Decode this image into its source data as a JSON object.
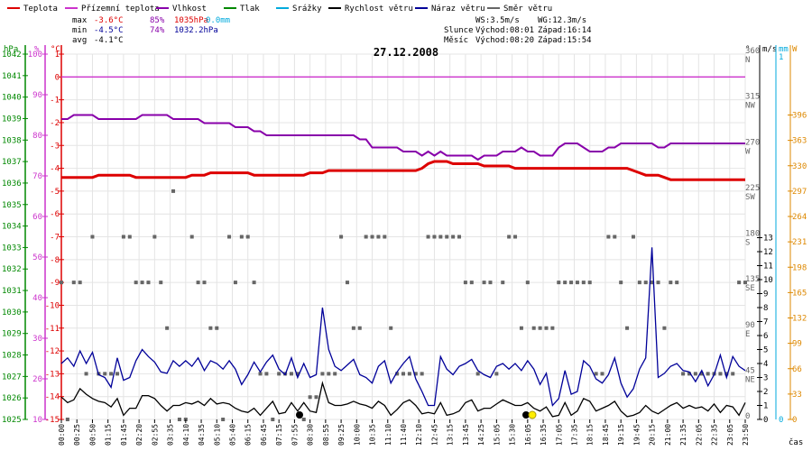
{
  "legend": [
    {
      "label": "Teplota",
      "color": "#dd0000"
    },
    {
      "label": "Přízemní teplota",
      "color": "#cc33cc"
    },
    {
      "label": "Vlhkost",
      "color": "#8800aa"
    },
    {
      "label": "Tlak",
      "color": "#008800"
    },
    {
      "label": "Srážky",
      "color": "#00aadd"
    },
    {
      "label": "Rychlost větru",
      "color": "#000000"
    },
    {
      "label": "Náraz větru",
      "color": "#000099"
    },
    {
      "label": "Směr větru",
      "color": "#666666"
    }
  ],
  "stats": {
    "max_label": "max",
    "max_temp": "-3.6°C",
    "max_hum": "85%",
    "max_press": "1035hPa",
    "rain": "0.0mm",
    "min_label": "min",
    "min_temp": "-4.5°C",
    "min_hum": "74%",
    "min_press": "1032.2hPa",
    "avg_label": "avg",
    "avg_temp": "-4.1°C"
  },
  "info": {
    "ws": "WS:3.5m/s",
    "wg": "WG:12.3m/s",
    "slunce_label": "Slunce",
    "slunce_rise": "Východ:08:01",
    "slunce_set": "Západ:16:14",
    "mesic_label": "Měsíc",
    "mesic_rise": "Východ:08:20",
    "mesic_set": "Západ:15:54"
  },
  "date": "27.12.2008",
  "axis_units": {
    "hpa": "hPa",
    "pct": "%",
    "degc": "°C",
    "deg": "°",
    "ms": "m/s",
    "mm": "mm",
    "w": "W",
    "cas": "čas"
  },
  "chart_data": {
    "type": "line",
    "title": "27.12.2008",
    "x_ticks": [
      "00:00",
      "00:25",
      "00:50",
      "01:15",
      "01:45",
      "02:20",
      "02:55",
      "03:35",
      "04:10",
      "04:35",
      "05:10",
      "05:40",
      "06:15",
      "06:45",
      "07:15",
      "07:55",
      "08:30",
      "08:55",
      "09:25",
      "10:00",
      "10:35",
      "11:10",
      "11:40",
      "12:10",
      "12:45",
      "13:15",
      "13:45",
      "14:25",
      "15:05",
      "15:30",
      "16:05",
      "16:35",
      "17:05",
      "17:35",
      "18:15",
      "18:45",
      "19:15",
      "19:45",
      "20:15",
      "21:00",
      "21:35",
      "22:05",
      "22:35",
      "23:05",
      "23:50"
    ],
    "y_hpa": {
      "range": [
        1025,
        1042
      ],
      "ticks": [
        1042,
        1041,
        1040,
        1039,
        1038,
        1037,
        1036,
        1035,
        1034,
        1033,
        1032,
        1031,
        1030,
        1029,
        1028,
        1027,
        1026,
        1025
      ]
    },
    "y_pct": {
      "range": [
        10,
        100
      ],
      "ticks": [
        100,
        90,
        80,
        70,
        60,
        50,
        40,
        30,
        20,
        10
      ]
    },
    "y_temp": {
      "range": [
        -15,
        1
      ],
      "ticks": [
        "1",
        "0",
        "-1",
        "-2",
        "-3",
        "-4",
        "-5",
        "-6",
        "-7",
        "-8",
        "-9",
        "-10",
        "-11",
        "-12",
        "-13",
        "-14",
        "-15"
      ]
    },
    "y_dir": {
      "range": [
        0,
        360
      ],
      "ticks": [
        "360",
        "315",
        "270",
        "225",
        "180",
        "135",
        "90",
        "45",
        "0"
      ],
      "cardinals": [
        "N",
        "NW",
        "W",
        "SW",
        "S",
        "SE",
        "E",
        "NE",
        ""
      ]
    },
    "y_ms": {
      "range": [
        0,
        13
      ],
      "ticks": [
        "13",
        "12",
        "11",
        "10",
        "9",
        "8",
        "7",
        "6",
        "5",
        "4",
        "3",
        "2",
        "1",
        "0"
      ]
    },
    "y_mm": {
      "range": [
        0,
        1
      ],
      "ticks": [
        "1",
        "0"
      ]
    },
    "y_w": {
      "range": [
        0,
        396
      ],
      "ticks": [
        "396",
        "363",
        "330",
        "297",
        "264",
        "231",
        "198",
        "165",
        "132",
        "99",
        "66",
        "33",
        "0"
      ]
    },
    "series": [
      {
        "name": "Teplota",
        "color": "#dd0000",
        "axis": "temp",
        "values": [
          -4.4,
          -4.4,
          -4.4,
          -4.4,
          -4.4,
          -4.4,
          -4.3,
          -4.3,
          -4.3,
          -4.3,
          -4.3,
          -4.3,
          -4.4,
          -4.4,
          -4.4,
          -4.4,
          -4.4,
          -4.4,
          -4.4,
          -4.4,
          -4.4,
          -4.3,
          -4.3,
          -4.3,
          -4.2,
          -4.2,
          -4.2,
          -4.2,
          -4.2,
          -4.2,
          -4.2,
          -4.3,
          -4.3,
          -4.3,
          -4.3,
          -4.3,
          -4.3,
          -4.3,
          -4.3,
          -4.3,
          -4.2,
          -4.2,
          -4.2,
          -4.1,
          -4.1,
          -4.1,
          -4.1,
          -4.1,
          -4.1,
          -4.1,
          -4.1,
          -4.1,
          -4.1,
          -4.1,
          -4.1,
          -4.1,
          -4.1,
          -4.1,
          -4.0,
          -3.8,
          -3.7,
          -3.7,
          -3.7,
          -3.8,
          -3.8,
          -3.8,
          -3.8,
          -3.8,
          -3.9,
          -3.9,
          -3.9,
          -3.9,
          -3.9,
          -4.0,
          -4.0,
          -4.0,
          -4.0,
          -4.0,
          -4.0,
          -4.0,
          -4.0,
          -4.0,
          -4.0,
          -4.0,
          -4.0,
          -4.0,
          -4.0,
          -4.0,
          -4.0,
          -4.0,
          -4.0,
          -4.0,
          -4.1,
          -4.2,
          -4.3,
          -4.3,
          -4.3,
          -4.4,
          -4.5,
          -4.5,
          -4.5,
          -4.5,
          -4.5,
          -4.5,
          -4.5,
          -4.5,
          -4.5,
          -4.5,
          -4.5,
          -4.5,
          -4.5
        ]
      },
      {
        "name": "Přízemní teplota",
        "color": "#cc33cc",
        "axis": "temp",
        "values": [
          0,
          0,
          0,
          0,
          0,
          0,
          0,
          0,
          0,
          0,
          0,
          0,
          0,
          0,
          0,
          0,
          0,
          0,
          0,
          0,
          0,
          0,
          0,
          0,
          0,
          0,
          0,
          0,
          0,
          0,
          0,
          0,
          0,
          0,
          0,
          0,
          0,
          0,
          0,
          0,
          0,
          0,
          0,
          0,
          0,
          0,
          0,
          0,
          0,
          0,
          0,
          0,
          0,
          0,
          0,
          0,
          0,
          0,
          0,
          0,
          0,
          0,
          0,
          0,
          0,
          0,
          0,
          0,
          0,
          0,
          0,
          0,
          0,
          0,
          0,
          0,
          0,
          0,
          0,
          0,
          0,
          0,
          0,
          0,
          0,
          0,
          0,
          0,
          0,
          0,
          0,
          0,
          0,
          0,
          0,
          0,
          0,
          0,
          0,
          0,
          0,
          0,
          0,
          0,
          0,
          0,
          0,
          0,
          0,
          0
        ]
      },
      {
        "name": "Vlhkost",
        "color": "#8800aa",
        "axis": "pct",
        "values": [
          84,
          84,
          85,
          85,
          85,
          85,
          84,
          84,
          84,
          84,
          84,
          84,
          84,
          85,
          85,
          85,
          85,
          85,
          84,
          84,
          84,
          84,
          84,
          83,
          83,
          83,
          83,
          83,
          82,
          82,
          82,
          81,
          81,
          80,
          80,
          80,
          80,
          80,
          80,
          80,
          80,
          80,
          80,
          80,
          80,
          80,
          80,
          80,
          79,
          79,
          77,
          77,
          77,
          77,
          77,
          76,
          76,
          76,
          75,
          76,
          75,
          76,
          75,
          75,
          75,
          75,
          75,
          74,
          75,
          75,
          75,
          76,
          76,
          76,
          77,
          76,
          76,
          75,
          75,
          75,
          77,
          78,
          78,
          78,
          77,
          76,
          76,
          76,
          77,
          77,
          78,
          78,
          78,
          78,
          78,
          78,
          77,
          77,
          78,
          78,
          78,
          78,
          78,
          78,
          78,
          78,
          78,
          78,
          78,
          78,
          78
        ]
      },
      {
        "name": "Rychlost větru",
        "color": "#000000",
        "axis": "ms",
        "values": [
          1.6,
          1.2,
          1.4,
          2.2,
          1.8,
          1.5,
          1.3,
          1.2,
          0.9,
          1.5,
          0.3,
          0.8,
          0.8,
          1.7,
          1.7,
          1.5,
          1.0,
          0.6,
          1.0,
          1.0,
          1.2,
          1.1,
          1.3,
          1.0,
          1.5,
          1.1,
          1.2,
          1.1,
          0.8,
          0.6,
          0.5,
          0.8,
          0.3,
          0.8,
          1.3,
          0.4,
          0.5,
          1.2,
          0.6,
          1.2,
          0.6,
          0.5,
          2.6,
          1.2,
          1.0,
          1.0,
          1.1,
          1.3,
          1.1,
          1.0,
          0.8,
          1.3,
          1.0,
          0.3,
          0.7,
          1.2,
          1.4,
          1.0,
          0.4,
          0.5,
          0.4,
          1.2,
          0.3,
          0.4,
          0.6,
          1.2,
          1.4,
          0.6,
          0.8,
          0.8,
          1.1,
          1.4,
          1.2,
          1.0,
          1.0,
          1.2,
          0.8,
          0.6,
          0.9,
          0.2,
          0.3,
          1.2,
          0.3,
          0.6,
          1.5,
          1.3,
          0.6,
          0.8,
          1.0,
          1.3,
          0.6,
          0.2,
          0.3,
          0.5,
          1.0,
          0.6,
          0.4,
          0.7,
          1.0,
          1.2,
          0.8,
          1.0,
          0.8,
          0.9,
          0.6,
          1.1,
          0.5,
          1.0,
          0.9,
          0.3,
          1.2
        ]
      },
      {
        "name": "Náraz větru",
        "color": "#000099",
        "axis": "ms",
        "values": [
          4.0,
          4.4,
          3.8,
          4.9,
          4.0,
          4.8,
          3.2,
          3.0,
          2.3,
          4.4,
          2.8,
          3.0,
          4.2,
          5.0,
          4.5,
          4.1,
          3.4,
          3.3,
          4.2,
          3.8,
          4.2,
          3.8,
          4.4,
          3.5,
          4.2,
          4.0,
          3.6,
          4.2,
          3.6,
          2.5,
          3.2,
          4.1,
          3.4,
          4.1,
          4.6,
          3.6,
          3.2,
          4.4,
          3.0,
          4.0,
          3.0,
          3.2,
          8.0,
          5.0,
          3.8,
          3.5,
          3.9,
          4.3,
          3.2,
          3.0,
          2.6,
          3.8,
          4.2,
          2.6,
          3.4,
          4.0,
          4.5,
          2.9,
          2.0,
          1.0,
          1.0,
          4.5,
          3.6,
          3.2,
          3.8,
          4.0,
          4.3,
          3.5,
          3.2,
          3.0,
          3.8,
          4.0,
          3.6,
          4.0,
          3.5,
          4.2,
          3.6,
          2.5,
          3.3,
          1.0,
          1.5,
          3.5,
          1.8,
          2.0,
          4.2,
          3.8,
          2.9,
          2.6,
          3.2,
          4.4,
          2.6,
          1.6,
          2.2,
          3.6,
          4.4,
          12.3,
          3.0,
          3.3,
          3.8,
          4.0,
          3.5,
          3.4,
          2.7,
          3.5,
          2.4,
          3.2,
          4.6,
          3.0,
          4.5,
          3.8,
          3.5
        ]
      }
    ],
    "wind_direction": {
      "name": "Směr větru",
      "color": "#666666",
      "values": [
        135,
        0,
        135,
        135,
        45,
        180,
        45,
        45,
        45,
        45,
        180,
        180,
        135,
        135,
        135,
        180,
        135,
        90,
        225,
        0,
        0,
        180,
        135,
        135,
        90,
        90,
        0,
        180,
        135,
        180,
        180,
        135,
        45,
        45,
        0,
        45,
        45,
        45,
        45,
        0,
        22,
        22,
        45,
        45,
        45,
        180,
        135,
        90,
        90,
        180,
        180,
        180,
        180,
        90,
        45,
        45,
        45,
        45,
        45,
        180,
        180,
        180,
        180,
        180,
        180,
        135,
        135,
        45,
        135,
        135,
        45,
        135,
        180,
        180,
        90,
        135,
        90,
        90,
        90,
        90,
        135,
        135,
        135,
        135,
        135,
        135,
        45,
        45,
        180,
        180,
        135,
        90,
        180,
        135,
        135,
        135,
        135,
        90,
        135,
        135,
        45,
        45,
        45,
        45,
        45,
        45,
        45,
        45,
        45,
        135,
        135
      ]
    },
    "grid": true
  }
}
